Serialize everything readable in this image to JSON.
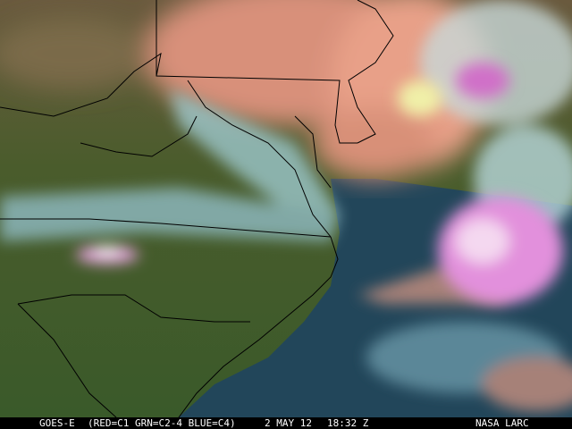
{
  "image": {
    "satellite": "GOES-E",
    "channels": "(RED=C1 GRN=C2-4 BLUE=C4)",
    "date": "2 MAY 12",
    "time": "18:32 Z",
    "credit": "NASA LARC"
  },
  "colors": {
    "land": "#3f5a2a",
    "warm_land": "#e0967a",
    "ocean": "#22465a",
    "cloud_low": "#a9d4d8",
    "cloud_high": "#e08ad8",
    "border": "#000000"
  }
}
